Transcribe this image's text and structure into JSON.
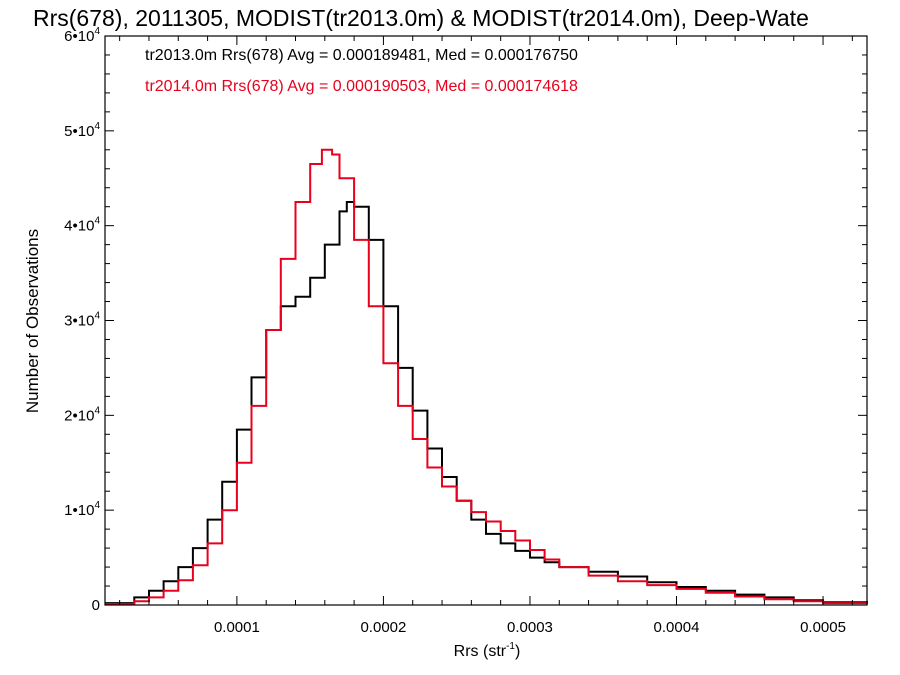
{
  "chart_data": {
    "type": "line",
    "title": "Rrs(678), 2011305, MODIST(tr2013.0m) & MODIST(tr2014.0m), Deep-Wate",
    "xlabel": "Rrs (str",
    "xlabel_sup": "-1",
    "xlabel_tail": ")",
    "ylabel": "Number of Observations",
    "xlim": [
      1e-05,
      0.00053
    ],
    "ylim": [
      0,
      60000
    ],
    "x_ticks": [
      {
        "value": 0.0001,
        "label": "0.0001"
      },
      {
        "value": 0.0002,
        "label": "0.0002"
      },
      {
        "value": 0.0003,
        "label": "0.0003"
      },
      {
        "value": 0.0004,
        "label": "0.0004"
      },
      {
        "value": 0.0005,
        "label": "0.0005"
      }
    ],
    "y_ticks": [
      {
        "value": 0,
        "base": "0",
        "exp": ""
      },
      {
        "value": 10000,
        "base": "1•10",
        "exp": "4"
      },
      {
        "value": 20000,
        "base": "2•10",
        "exp": "4"
      },
      {
        "value": 30000,
        "base": "3•10",
        "exp": "4"
      },
      {
        "value": 40000,
        "base": "4•10",
        "exp": "4"
      },
      {
        "value": 50000,
        "base": "5•10",
        "exp": "4"
      },
      {
        "value": 60000,
        "base": "6•10",
        "exp": "4"
      }
    ],
    "grid": false,
    "legend_position": "top-left",
    "series": [
      {
        "name": "tr2013.0m",
        "legend": "tr2013.0m Rrs(678) Avg = 0.000189481, Med = 0.000176750",
        "color": "#000000",
        "x": [
          1e-05,
          3e-05,
          4e-05,
          5e-05,
          6e-05,
          7e-05,
          8e-05,
          9e-05,
          0.0001,
          0.00011,
          0.00012,
          0.00013,
          0.00014,
          0.00015,
          0.00016,
          0.00017,
          0.000175,
          0.00018,
          0.00019,
          0.0002,
          0.00021,
          0.00022,
          0.00023,
          0.00024,
          0.00025,
          0.00026,
          0.00027,
          0.00028,
          0.00029,
          0.0003,
          0.00031,
          0.00032,
          0.00034,
          0.00036,
          0.00038,
          0.0004,
          0.00042,
          0.00044,
          0.00046,
          0.00048,
          0.0005,
          0.00053
        ],
        "values": [
          200,
          800,
          1500,
          2500,
          4000,
          6000,
          9000,
          13000,
          18500,
          24000,
          29000,
          31500,
          32500,
          34500,
          38000,
          41500,
          42500,
          42000,
          38500,
          31500,
          25000,
          20500,
          16500,
          13500,
          11000,
          9000,
          7500,
          6500,
          5700,
          5000,
          4500,
          4000,
          3500,
          3000,
          2400,
          1900,
          1500,
          1100,
          800,
          500,
          300,
          100
        ]
      },
      {
        "name": "tr2014.0m",
        "legend": "tr2014.0m Rrs(678) Avg = 0.000190503, Med = 0.000174618",
        "color": "#e8001c",
        "x": [
          1e-05,
          3e-05,
          4e-05,
          5e-05,
          6e-05,
          7e-05,
          8e-05,
          9e-05,
          0.0001,
          0.00011,
          0.00012,
          0.00013,
          0.00014,
          0.00015,
          0.000158,
          0.000165,
          0.00017,
          0.00018,
          0.00019,
          0.0002,
          0.00021,
          0.00022,
          0.00023,
          0.00024,
          0.00025,
          0.00026,
          0.00027,
          0.00028,
          0.00029,
          0.0003,
          0.00031,
          0.00032,
          0.00034,
          0.00036,
          0.00038,
          0.0004,
          0.00042,
          0.00044,
          0.00046,
          0.00048,
          0.0005,
          0.00053
        ],
        "values": [
          100,
          400,
          800,
          1500,
          2600,
          4200,
          6500,
          10000,
          15000,
          21000,
          29000,
          36500,
          42500,
          46500,
          48000,
          47500,
          45000,
          38500,
          31500,
          25500,
          21000,
          17500,
          14500,
          12500,
          11000,
          9800,
          8800,
          7800,
          6800,
          5800,
          4800,
          4000,
          3100,
          2500,
          2100,
          1700,
          1300,
          900,
          600,
          400,
          200,
          100
        ]
      }
    ]
  }
}
